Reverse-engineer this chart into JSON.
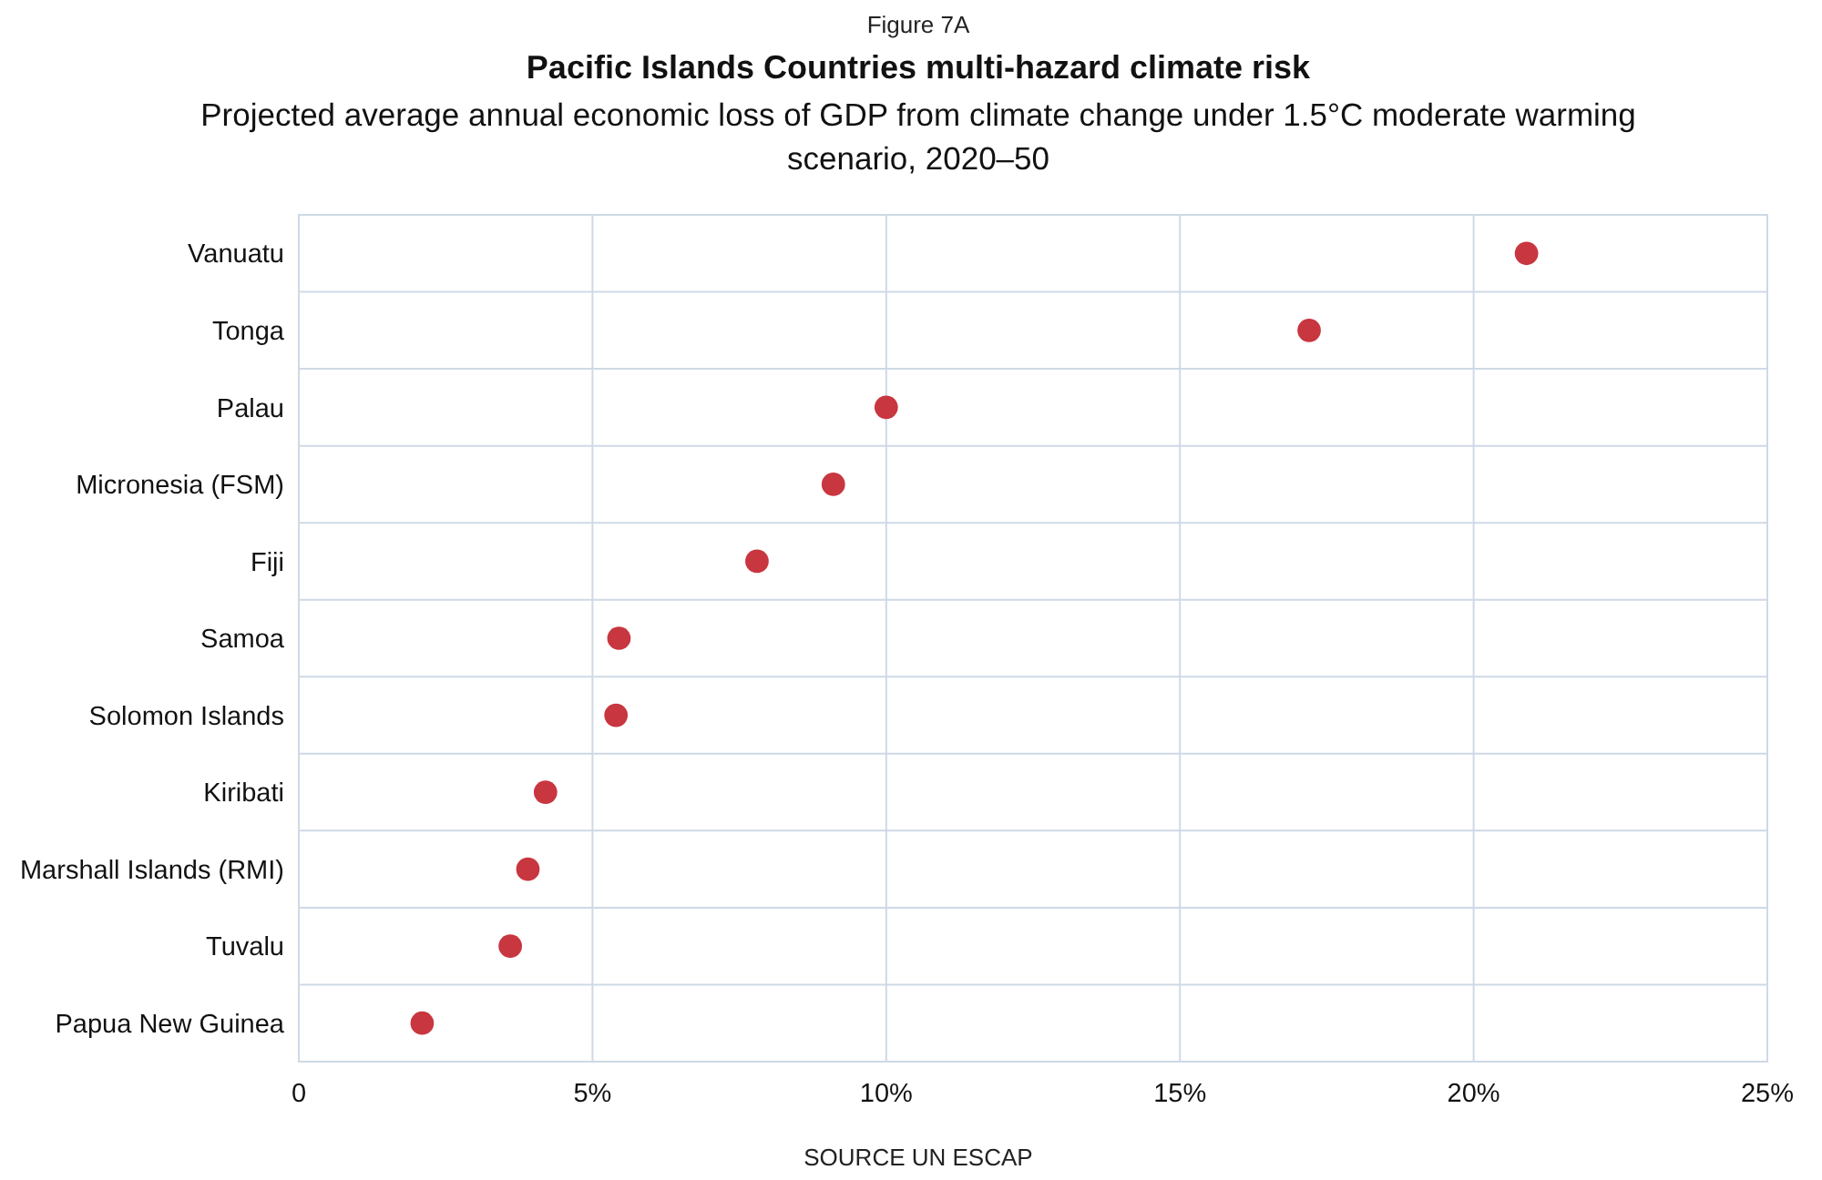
{
  "chart_data": {
    "type": "scatter",
    "orientation": "horizontal",
    "title": "Pacific Islands Countries multi-hazard climate risk",
    "subtitle": "Projected average annual economic loss of GDP from climate change under 1.5°C moderate warming scenario, 2020–50",
    "annotations": [
      "Figure 7A",
      "SOURCE UN ESCAP"
    ],
    "categories": [
      "Vanuatu",
      "Tonga",
      "Palau",
      "Micronesia (FSM)",
      "Fiji",
      "Samoa",
      "Solomon Islands",
      "Kiribati",
      "Marshall Islands (RMI)",
      "Tuvalu",
      "Papua New Guinea"
    ],
    "values": [
      20.9,
      17.2,
      10.0,
      9.1,
      7.8,
      5.45,
      5.4,
      4.2,
      3.9,
      3.6,
      2.1
    ],
    "color": "#c8363f",
    "xlim": [
      0,
      25
    ],
    "xticks": [
      0,
      {
        "value": 5,
        "label": "5%"
      },
      {
        "value": 10,
        "label": "10%"
      },
      {
        "value": 15,
        "label": "15%"
      },
      {
        "value": 20,
        "label": "20%"
      },
      {
        "value": 25,
        "label": "25%"
      }
    ],
    "grid": true,
    "marker": "circle"
  }
}
